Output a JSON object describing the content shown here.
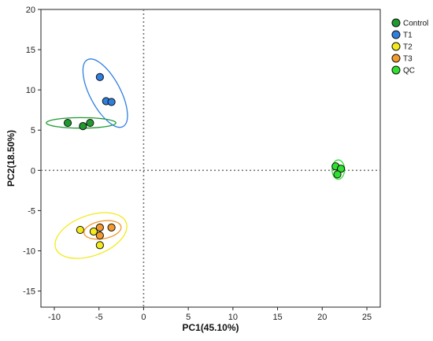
{
  "chart_data": {
    "type": "scatter",
    "xlabel": "PC1(45.10%)",
    "ylabel": "PC2(18.50%)",
    "xlim": [
      -11.5,
      26.5
    ],
    "ylim": [
      -17,
      20
    ],
    "xticks": [
      -10,
      -5,
      0,
      5,
      10,
      15,
      20,
      25
    ],
    "yticks": [
      -15,
      -10,
      -5,
      0,
      5,
      10,
      15,
      20
    ],
    "reference_lines": {
      "x": 0,
      "y": 0
    },
    "grid": false,
    "legend_position": "top-right",
    "series": [
      {
        "name": "Control",
        "color": "#1e9a2e",
        "points": [
          [
            -8.5,
            5.9
          ],
          [
            -6.8,
            5.5
          ],
          [
            -6.0,
            5.9
          ]
        ],
        "ellipse": {
          "cx": -7.0,
          "cy": 5.9,
          "rx": 3.9,
          "ry": 0.65,
          "angle_deg": 0
        }
      },
      {
        "name": "T1",
        "color": "#2f7fe0",
        "points": [
          [
            -4.9,
            11.6
          ],
          [
            -4.2,
            8.6
          ],
          [
            -3.6,
            8.5
          ]
        ],
        "ellipse": {
          "cx": -4.3,
          "cy": 9.6,
          "rx": 1.7,
          "ry": 4.7,
          "angle_deg": -28
        }
      },
      {
        "name": "T2",
        "color": "#f2ea1a",
        "points": [
          [
            -7.1,
            -7.4
          ],
          [
            -5.6,
            -7.6
          ],
          [
            -4.9,
            -9.3
          ]
        ],
        "ellipse": {
          "cx": -5.9,
          "cy": -8.1,
          "rx": 4.2,
          "ry": 2.5,
          "angle_deg": -20
        }
      },
      {
        "name": "T3",
        "color": "#f29a2b",
        "points": [
          [
            -4.9,
            -7.1
          ],
          [
            -3.6,
            -7.1
          ],
          [
            -4.9,
            -8.1
          ]
        ],
        "ellipse": {
          "cx": -4.6,
          "cy": -7.4,
          "rx": 2.1,
          "ry": 1.1,
          "angle_deg": -10
        }
      },
      {
        "name": "QC",
        "color": "#2fe02f",
        "points": [
          [
            21.5,
            0.5
          ],
          [
            22.1,
            0.2
          ],
          [
            21.7,
            -0.5
          ]
        ],
        "ellipse": {
          "cx": 21.8,
          "cy": 0.1,
          "rx": 0.7,
          "ry": 1.2,
          "angle_deg": 0
        }
      }
    ]
  }
}
